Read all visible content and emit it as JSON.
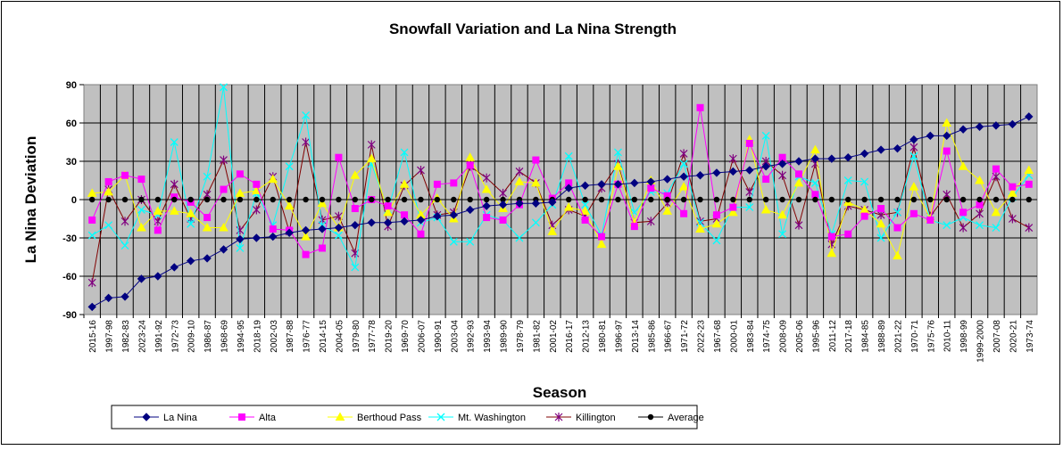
{
  "chart_data": {
    "type": "line",
    "title": "Snowfall Variation and La Nina Strength",
    "xlabel": "Season",
    "ylabel": "La Nina Deviation",
    "ylim": [
      -90,
      90
    ],
    "yticks": [
      -90,
      -60,
      -30,
      0,
      30,
      60,
      90
    ],
    "grid": true,
    "legend_position": "bottom",
    "plot_background": "#c0c0c0",
    "categories": [
      "2015-16",
      "1997-98",
      "1982-83",
      "2023-24",
      "1991-92",
      "1972-73",
      "2009-10",
      "1986-87",
      "1968-69",
      "1994-95",
      "2018-19",
      "2002-03",
      "1987-88",
      "1976-77",
      "2014-15",
      "2004-05",
      "1979-80",
      "1977-78",
      "2019-20",
      "1969-70",
      "2006-07",
      "1990-91",
      "2003-04",
      "1992-93",
      "1993-94",
      "1989-90",
      "1978-79",
      "1981-82",
      "2001-02",
      "2016-17",
      "2012-13",
      "1980-81",
      "1996-97",
      "2013-14",
      "1985-86",
      "1966-67",
      "1971-72",
      "2022-23",
      "1967-68",
      "2000-01",
      "1983-84",
      "1974-75",
      "2008-09",
      "2005-06",
      "1995-96",
      "2011-12",
      "2017-18",
      "1984-85",
      "1988-89",
      "2021-22",
      "1970-71",
      "1975-76",
      "2010-11",
      "1998-99",
      "1999-2000",
      "2007-08",
      "2020-21",
      "1973-74"
    ],
    "series": [
      {
        "name": "La Nina",
        "color": "#000080",
        "marker": "diamond",
        "values": [
          -84,
          -77,
          -76,
          -62,
          -60,
          -53,
          -48,
          -46,
          -39,
          -31,
          -30,
          -29,
          -26,
          -24,
          -23,
          -22,
          -20,
          -18,
          -18,
          -17,
          -16,
          -13,
          -12,
          -8,
          -5,
          -4,
          -3,
          -3,
          -2,
          9,
          11,
          12,
          12,
          13,
          14,
          16,
          18,
          19,
          21,
          22,
          23,
          26,
          28,
          30,
          32,
          32,
          33,
          36,
          39,
          40,
          47,
          50,
          50,
          55,
          57,
          58,
          59,
          65
        ]
      },
      {
        "name": "Alta",
        "color": "#ff00ff",
        "marker": "square",
        "values": [
          -16,
          14,
          19,
          16,
          -24,
          2,
          -2,
          -14,
          8,
          20,
          12,
          -23,
          -24,
          -43,
          -38,
          33,
          -7,
          0,
          -5,
          -12,
          -27,
          12,
          13,
          27,
          -14,
          -16,
          -4,
          31,
          1,
          13,
          -16,
          -29,
          12,
          -21,
          9,
          3,
          -11,
          72,
          -12,
          -6,
          44,
          16,
          33,
          20,
          4,
          -29,
          -27,
          -13,
          -7,
          -22,
          -11,
          -16,
          38,
          -10,
          -4,
          24,
          10,
          12
        ]
      },
      {
        "name": "Berthoud Pass",
        "color": "#ffff00",
        "marker": "triangle",
        "values": [
          5,
          6,
          19,
          -22,
          -9,
          -9,
          -11,
          -22,
          -22,
          5,
          7,
          16,
          -5,
          -29,
          -3,
          -22,
          19,
          32,
          -10,
          12,
          -12,
          1,
          -15,
          33,
          8,
          -7,
          14,
          13,
          -25,
          -6,
          -9,
          -35,
          26,
          -18,
          15,
          -9,
          10,
          -23,
          -19,
          -10,
          47,
          -8,
          -12,
          13,
          39,
          -42,
          -2,
          -8,
          -19,
          -44,
          10,
          -15,
          60,
          26,
          15,
          -10,
          5,
          23
        ]
      },
      {
        "name": "Mt. Washington",
        "color": "#00ffff",
        "marker": "x",
        "values": [
          -28,
          -20,
          -36,
          -8,
          -12,
          45,
          -19,
          18,
          88,
          -38,
          5,
          -20,
          26,
          66,
          -20,
          -28,
          -53,
          28,
          -8,
          37,
          -18,
          -14,
          -33,
          -33,
          -12,
          -16,
          -30,
          -18,
          -4,
          34,
          -4,
          -28,
          37,
          -10,
          6,
          5,
          28,
          -18,
          -32,
          -6,
          -6,
          50,
          -27,
          18,
          13,
          -27,
          15,
          14,
          -30,
          -10,
          34,
          -16,
          -20,
          -14,
          -20,
          -22,
          2,
          19
        ]
      },
      {
        "name": "Killington",
        "color": "#800000",
        "marker": "star",
        "marker_color": "#800080",
        "values": [
          -65,
          8,
          -17,
          0,
          -17,
          12,
          -15,
          4,
          31,
          -24,
          -8,
          18,
          -25,
          45,
          -16,
          -13,
          -42,
          43,
          -21,
          11,
          23,
          -12,
          -10,
          26,
          17,
          5,
          22,
          13,
          -20,
          -8,
          -13,
          9,
          28,
          -18,
          -17,
          -3,
          36,
          -17,
          -15,
          32,
          6,
          30,
          19,
          -20,
          28,
          -35,
          -5,
          -8,
          -12,
          -10,
          41,
          -13,
          4,
          -22,
          -11,
          18,
          -15,
          -22
        ]
      },
      {
        "name": "Average",
        "color": "#000000",
        "marker": "circle",
        "values": [
          0,
          0,
          0,
          0,
          0,
          0,
          0,
          0,
          0,
          0,
          0,
          0,
          0,
          0,
          0,
          0,
          0,
          0,
          0,
          0,
          0,
          0,
          0,
          0,
          0,
          0,
          0,
          0,
          0,
          0,
          0,
          0,
          0,
          0,
          0,
          0,
          0,
          0,
          0,
          0,
          0,
          0,
          0,
          0,
          0,
          0,
          0,
          0,
          0,
          0,
          0,
          0,
          0,
          0,
          0,
          0,
          0,
          0
        ]
      }
    ]
  }
}
